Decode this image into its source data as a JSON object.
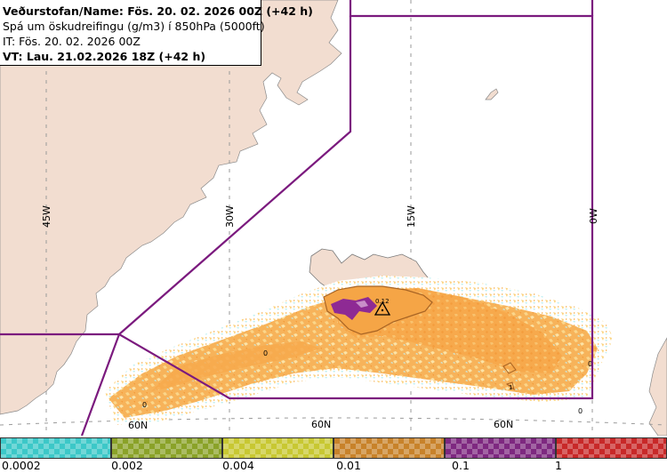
{
  "header": {
    "line1": "Veðurstofan/Name: Fös. 20. 02. 2026 00Z (+42 h)",
    "line2": "Spá um öskudreifingu (g/m3) í 850hPa (5000ft)",
    "line3": "IT: Fös. 20. 02. 2026 00Z",
    "line4": "VT: Lau. 21.02.2026 18Z (+42 h)"
  },
  "map": {
    "longitude_labels": [
      "45W",
      "30W",
      "15W",
      "0W"
    ],
    "latitude_labels": [
      "60N",
      "60N",
      "60N"
    ],
    "contour_labels": [
      "0",
      "0",
      "0",
      "0",
      "1"
    ],
    "volcano_label": "0.12",
    "colors": {
      "land": "#f2ddd0",
      "sea": "#ffffff",
      "boundary": "#7b1a7e",
      "ash_low": "#f7a84a",
      "ash_mid": "#fbd27a",
      "ash_cyan": "#bfeff2",
      "ash_purple": "#8e2a94",
      "ash_brown": "#b06a2a"
    }
  },
  "legend": {
    "tick_labels": [
      "0.0002",
      "0.002",
      "0.004",
      "0.01",
      "0.1",
      "1"
    ],
    "colors": [
      "#3cc8c8",
      "#8aa228",
      "#c8c832",
      "#c8822a",
      "#7e2880",
      "#c82828"
    ]
  }
}
